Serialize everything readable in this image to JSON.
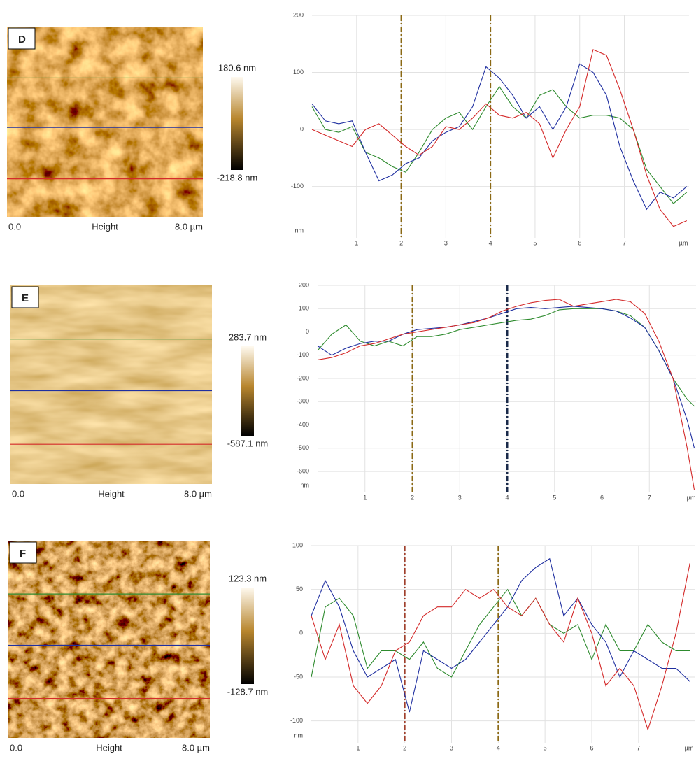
{
  "chart_data": [
    {
      "type": "line",
      "label": "D",
      "colorbar_max": "180.6 nm",
      "colorbar_min": "-218.8 nm",
      "image_left": "0.0",
      "image_caption": "Height",
      "image_right": "8.0 µm",
      "x_unit": "µm",
      "y_unit": "nm",
      "xlim": [
        0,
        8.45
      ],
      "ylim": [
        -190,
        200
      ],
      "xticks": [
        1,
        2,
        3,
        4,
        5,
        6,
        7
      ],
      "yticks": [
        200,
        100,
        0,
        -100
      ],
      "grid": true,
      "cursors": [
        {
          "x": 2,
          "color": "#8b6914"
        },
        {
          "x": 4,
          "color": "#8b6914"
        }
      ],
      "x": [
        0,
        0.3,
        0.6,
        0.9,
        1.2,
        1.5,
        1.8,
        2.1,
        2.4,
        2.7,
        3.0,
        3.3,
        3.6,
        3.9,
        4.2,
        4.5,
        4.8,
        5.1,
        5.4,
        5.7,
        6.0,
        6.3,
        6.6,
        6.9,
        7.2,
        7.5,
        7.8,
        8.1,
        8.4
      ],
      "series": [
        {
          "color": "#2e8b2e",
          "values": [
            40,
            0,
            -5,
            5,
            -40,
            -50,
            -65,
            -75,
            -40,
            0,
            20,
            30,
            0,
            40,
            75,
            40,
            20,
            60,
            70,
            40,
            20,
            25,
            25,
            20,
            0,
            -70,
            -100,
            -130,
            -110
          ]
        },
        {
          "color": "#1f2fa0",
          "values": [
            45,
            15,
            10,
            15,
            -40,
            -90,
            -80,
            -60,
            -50,
            -20,
            -5,
            5,
            40,
            110,
            90,
            60,
            20,
            40,
            0,
            40,
            115,
            100,
            60,
            -30,
            -90,
            -140,
            -110,
            -120,
            -100
          ]
        },
        {
          "color": "#d42a2a",
          "values": [
            0,
            -10,
            -20,
            -30,
            0,
            10,
            -10,
            -30,
            -45,
            -30,
            5,
            0,
            20,
            45,
            25,
            20,
            30,
            10,
            -50,
            0,
            40,
            140,
            130,
            70,
            0,
            -80,
            -140,
            -170,
            -160
          ]
        }
      ]
    },
    {
      "type": "line",
      "label": "E",
      "colorbar_max": "283.7 nm",
      "colorbar_min": "-587.1 nm",
      "image_left": "0.0",
      "image_caption": "Height",
      "image_right": "8.0 µm",
      "x_unit": "µm",
      "y_unit": "nm",
      "xlim": [
        0,
        8
      ],
      "ylim": [
        -690,
        200
      ],
      "xticks": [
        1,
        2,
        3,
        4,
        5,
        6,
        7
      ],
      "yticks": [
        200,
        100,
        0,
        -100,
        -200,
        -300,
        -400,
        -500,
        -600
      ],
      "grid": true,
      "cursors": [
        {
          "x": 2,
          "color": "#8b6914"
        },
        {
          "x": 4,
          "color": "#1a2a4a"
        }
      ],
      "x": [
        0,
        0.3,
        0.6,
        0.9,
        1.2,
        1.5,
        1.8,
        2.1,
        2.4,
        2.7,
        3.0,
        3.3,
        3.6,
        3.9,
        4.2,
        4.5,
        4.8,
        5.1,
        5.4,
        5.7,
        6.0,
        6.3,
        6.6,
        6.9,
        7.2,
        7.5,
        7.8,
        7.95
      ],
      "series": [
        {
          "color": "#2e8b2e",
          "values": [
            -80,
            -10,
            30,
            -40,
            -60,
            -40,
            -60,
            -20,
            -20,
            -10,
            10,
            20,
            30,
            40,
            50,
            55,
            70,
            95,
            100,
            100,
            100,
            90,
            70,
            20,
            -80,
            -200,
            -290,
            -320
          ]
        },
        {
          "color": "#1f2fa0",
          "values": [
            -60,
            -100,
            -70,
            -50,
            -40,
            -40,
            -10,
            10,
            15,
            20,
            30,
            45,
            60,
            80,
            100,
            105,
            100,
            105,
            110,
            105,
            100,
            90,
            60,
            20,
            -80,
            -200,
            -380,
            -500
          ]
        },
        {
          "color": "#d42a2a",
          "values": [
            -120,
            -110,
            -90,
            -60,
            -50,
            -30,
            -10,
            0,
            10,
            20,
            30,
            40,
            60,
            90,
            110,
            125,
            135,
            140,
            110,
            120,
            130,
            140,
            130,
            80,
            -40,
            -200,
            -500,
            -680
          ]
        }
      ]
    },
    {
      "type": "line",
      "label": "F",
      "colorbar_max": "123.3 nm",
      "colorbar_min": "-128.7 nm",
      "image_left": "0.0",
      "image_caption": "Height",
      "image_right": "8.0 µm",
      "x_unit": "µm",
      "y_unit": "nm",
      "xlim": [
        0,
        8.2
      ],
      "ylim": [
        -125,
        100
      ],
      "xticks": [
        1,
        2,
        3,
        4,
        5,
        6,
        7
      ],
      "yticks": [
        100,
        50,
        0,
        -50,
        -100
      ],
      "grid": true,
      "cursors": [
        {
          "x": 2,
          "color": "#a0402d"
        },
        {
          "x": 4,
          "color": "#8b6914"
        }
      ],
      "x": [
        0,
        0.3,
        0.6,
        0.9,
        1.2,
        1.5,
        1.8,
        2.1,
        2.4,
        2.7,
        3.0,
        3.3,
        3.6,
        3.9,
        4.2,
        4.5,
        4.8,
        5.1,
        5.4,
        5.7,
        6.0,
        6.3,
        6.6,
        6.9,
        7.2,
        7.5,
        7.8,
        8.1
      ],
      "series": [
        {
          "color": "#2e8b2e",
          "values": [
            -50,
            30,
            40,
            20,
            -40,
            -20,
            -20,
            -30,
            -10,
            -40,
            -50,
            -20,
            10,
            30,
            50,
            20,
            40,
            10,
            0,
            10,
            -30,
            10,
            -20,
            -20,
            10,
            -10,
            -20,
            -20
          ]
        },
        {
          "color": "#1f2fa0",
          "values": [
            20,
            60,
            30,
            -20,
            -50,
            -40,
            -30,
            -90,
            -20,
            -30,
            -40,
            -30,
            -10,
            10,
            30,
            60,
            75,
            85,
            20,
            40,
            10,
            -10,
            -50,
            -20,
            -30,
            -40,
            -40,
            -55
          ]
        },
        {
          "color": "#d42a2a",
          "values": [
            20,
            -30,
            10,
            -60,
            -80,
            -60,
            -20,
            -10,
            20,
            30,
            30,
            50,
            40,
            50,
            30,
            20,
            40,
            10,
            -10,
            40,
            0,
            -60,
            -40,
            -60,
            -110,
            -60,
            0,
            80
          ]
        }
      ]
    }
  ]
}
